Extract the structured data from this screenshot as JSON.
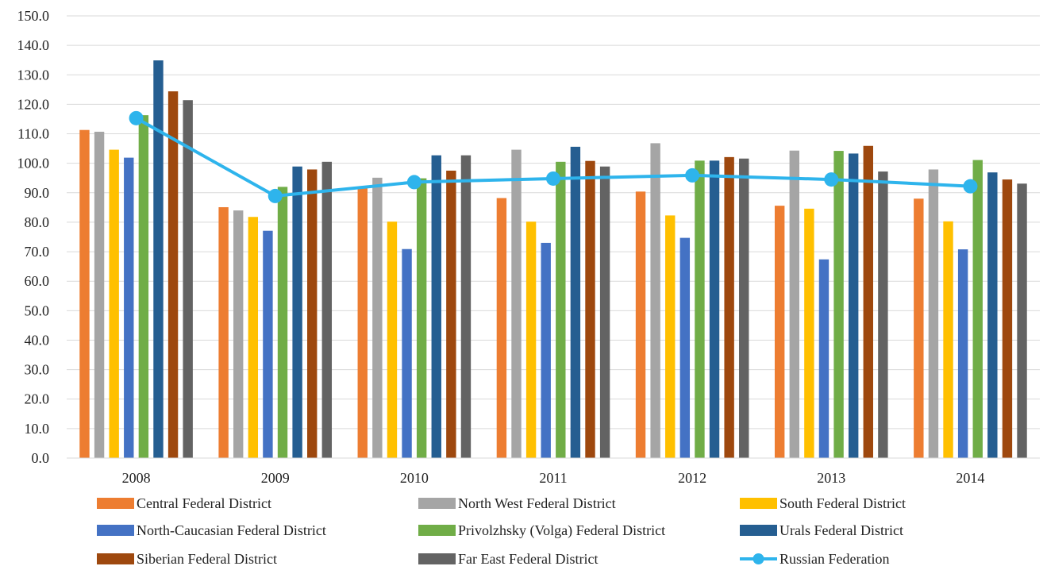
{
  "chart_data": {
    "type": "bar",
    "title": "",
    "xlabel": "",
    "ylabel": "",
    "ylim": [
      0,
      150
    ],
    "ytick_step": 10,
    "ytick_labels": [
      "0.0",
      "10.0",
      "20.0",
      "30.0",
      "40.0",
      "50.0",
      "60.0",
      "70.0",
      "80.0",
      "90.0",
      "100.0",
      "110.0",
      "120.0",
      "130.0",
      "140.0",
      "150.0"
    ],
    "grid": "horizontal",
    "legend_position": "bottom",
    "categories": [
      "2008",
      "2009",
      "2010",
      "2011",
      "2012",
      "2013",
      "2014"
    ],
    "series": [
      {
        "name": "Central Federal District",
        "kind": "bar",
        "color": "#ED7D31",
        "values": [
          111.3,
          85.1,
          91.6,
          88.2,
          90.4,
          85.6,
          88.0
        ]
      },
      {
        "name": "North West Federal District",
        "kind": "bar",
        "color": "#A5A5A5",
        "values": [
          110.7,
          84.0,
          95.1,
          104.6,
          106.8,
          104.3,
          97.9
        ]
      },
      {
        "name": "South Federal District",
        "kind": "bar",
        "color": "#FFC000",
        "values": [
          104.6,
          81.8,
          80.2,
          80.2,
          82.3,
          84.6,
          80.3
        ]
      },
      {
        "name": "North-Caucasian Federal District",
        "kind": "bar",
        "color": "#4472C4",
        "values": [
          101.9,
          77.1,
          70.9,
          73.0,
          74.7,
          67.4,
          70.8
        ]
      },
      {
        "name": "Privolzhsky (Volga) Federal District",
        "kind": "bar",
        "color": "#70AD47",
        "values": [
          116.3,
          92.0,
          94.9,
          100.5,
          100.9,
          104.2,
          101.1
        ]
      },
      {
        "name": "Urals Federal District",
        "kind": "bar",
        "color": "#255E91",
        "values": [
          134.9,
          98.9,
          102.7,
          105.6,
          100.9,
          103.3,
          96.9
        ]
      },
      {
        "name": "Siberian Federal District",
        "kind": "bar",
        "color": "#9E480E",
        "values": [
          124.4,
          97.9,
          97.5,
          100.8,
          102.1,
          105.9,
          94.5
        ]
      },
      {
        "name": "Far East Federal District",
        "kind": "bar",
        "color": "#636363",
        "values": [
          121.4,
          100.5,
          102.7,
          98.9,
          101.6,
          97.2,
          93.1
        ]
      },
      {
        "name": "Russian Federation",
        "kind": "line",
        "color": "#2EB4EC",
        "values": [
          115.3,
          88.9,
          93.6,
          94.8,
          95.9,
          94.5,
          92.2
        ]
      }
    ]
  }
}
